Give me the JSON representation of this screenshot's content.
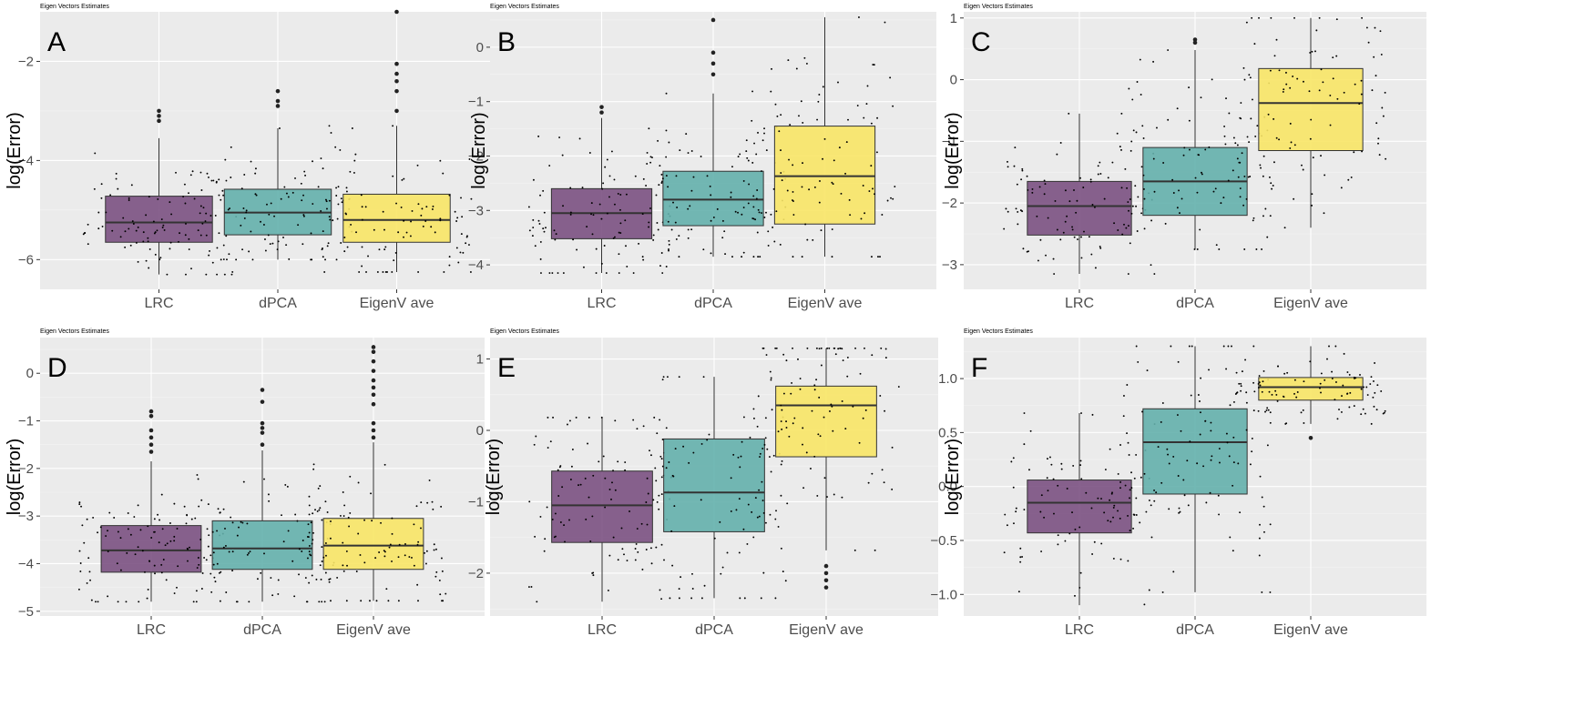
{
  "figure": {
    "panel_title": "Eigen Vectors Estimates"
  },
  "chart_data": [
    {
      "panel": "A",
      "type": "box",
      "title": "Eigen Vectors Estimates",
      "ylabel": "log(Error)",
      "xlabel": "",
      "ylim": [
        -6.6,
        -1.0
      ],
      "yticks": [
        -6,
        -4,
        -2
      ],
      "ytick_labels": [
        "−6",
        "−4",
        "−2"
      ],
      "categories": [
        "LRC",
        "dPCA",
        "EigenV ave"
      ],
      "colors": [
        "#7b5182",
        "#64b0ac",
        "#f8e666"
      ],
      "boxes": [
        {
          "q1": -5.65,
          "median": -5.25,
          "q3": -4.72,
          "whisker_low": -6.3,
          "whisker_high": -3.55,
          "outliers": [
            -3.0,
            -3.1,
            -3.2
          ]
        },
        {
          "q1": -5.5,
          "median": -5.05,
          "q3": -4.58,
          "whisker_low": -6.0,
          "whisker_high": -3.35,
          "outliers": [
            -2.6,
            -2.8,
            -2.9
          ]
        },
        {
          "q1": -5.65,
          "median": -5.2,
          "q3": -4.68,
          "whisker_low": -6.25,
          "whisker_high": -3.3,
          "outliers": [
            -1.0,
            -2.05,
            -2.25,
            -2.4,
            -2.6,
            -3.0
          ]
        }
      ]
    },
    {
      "panel": "B",
      "type": "box",
      "title": "Eigen Vectors Estimates",
      "ylabel": "log(Error)",
      "xlabel": "",
      "ylim": [
        -4.45,
        0.65
      ],
      "yticks": [
        -4,
        -3,
        -2,
        -1,
        0
      ],
      "ytick_labels": [
        "−4",
        "−3",
        "−2",
        "−1",
        "0"
      ],
      "categories": [
        "LRC",
        "dPCA",
        "EigenV ave"
      ],
      "colors": [
        "#7b5182",
        "#64b0ac",
        "#f8e666"
      ],
      "boxes": [
        {
          "q1": -3.52,
          "median": -3.05,
          "q3": -2.6,
          "whisker_low": -4.15,
          "whisker_high": -1.3,
          "outliers": [
            -1.1,
            -1.2
          ]
        },
        {
          "q1": -3.28,
          "median": -2.8,
          "q3": -2.28,
          "whisker_low": -3.85,
          "whisker_high": -0.85,
          "outliers": [
            -0.5,
            -0.3,
            -0.1,
            0.5
          ]
        },
        {
          "q1": -3.25,
          "median": -2.37,
          "q3": -1.45,
          "whisker_low": -3.85,
          "whisker_high": 0.55,
          "outliers": []
        }
      ]
    },
    {
      "panel": "C",
      "type": "box",
      "title": "Eigen Vectors Estimates",
      "ylabel": "log(Error)",
      "xlabel": "",
      "ylim": [
        -3.4,
        1.1
      ],
      "yticks": [
        -3,
        -2,
        -1,
        0,
        1
      ],
      "ytick_labels": [
        "−3",
        "−2",
        "−1",
        "0",
        "1"
      ],
      "categories": [
        "LRC",
        "dPCA",
        "EigenV ave"
      ],
      "colors": [
        "#7b5182",
        "#64b0ac",
        "#f8e666"
      ],
      "boxes": [
        {
          "q1": -2.52,
          "median": -2.05,
          "q3": -1.65,
          "whisker_low": -3.15,
          "whisker_high": -0.55,
          "outliers": []
        },
        {
          "q1": -2.2,
          "median": -1.65,
          "q3": -1.1,
          "whisker_low": -2.75,
          "whisker_high": 0.48,
          "outliers": [
            0.6,
            0.65
          ]
        },
        {
          "q1": -1.15,
          "median": -0.38,
          "q3": 0.18,
          "whisker_low": -2.4,
          "whisker_high": 1.0,
          "outliers": []
        }
      ]
    },
    {
      "panel": "D",
      "type": "box",
      "title": "Eigen Vectors Estimates",
      "ylabel": "log(Error)",
      "xlabel": "",
      "ylim": [
        -5.1,
        0.75
      ],
      "yticks": [
        -5,
        -4,
        -3,
        -2,
        -1,
        0
      ],
      "ytick_labels": [
        "−5",
        "−4",
        "−3",
        "−2",
        "−1",
        "0"
      ],
      "categories": [
        "LRC",
        "dPCA",
        "EigenV ave"
      ],
      "colors": [
        "#7b5182",
        "#64b0ac",
        "#f8e666"
      ],
      "boxes": [
        {
          "q1": -4.18,
          "median": -3.72,
          "q3": -3.2,
          "whisker_low": -4.8,
          "whisker_high": -1.85,
          "outliers": [
            -0.8,
            -0.9,
            -1.2,
            -1.35,
            -1.5,
            -1.65
          ]
        },
        {
          "q1": -4.12,
          "median": -3.68,
          "q3": -3.1,
          "whisker_low": -4.8,
          "whisker_high": -1.62,
          "outliers": [
            -0.35,
            -0.6,
            -1.05,
            -1.15,
            -1.25,
            -1.5
          ]
        },
        {
          "q1": -4.12,
          "median": -3.62,
          "q3": -3.05,
          "whisker_low": -4.78,
          "whisker_high": -1.45,
          "outliers": [
            0.55,
            0.45,
            0.25,
            0.05,
            -0.15,
            -0.3,
            -0.45,
            -0.65,
            -1.05,
            -1.2,
            -1.35
          ]
        }
      ]
    },
    {
      "panel": "E",
      "type": "box",
      "title": "Eigen Vectors Estimates",
      "ylabel": "log(Error)",
      "xlabel": "",
      "ylim": [
        -2.6,
        1.3
      ],
      "yticks": [
        -2,
        -1,
        0,
        1
      ],
      "ytick_labels": [
        "−2",
        "−1",
        "0",
        "1"
      ],
      "categories": [
        "LRC",
        "dPCA",
        "EigenV ave"
      ],
      "colors": [
        "#7b5182",
        "#64b0ac",
        "#f8e666"
      ],
      "boxes": [
        {
          "q1": -1.57,
          "median": -1.05,
          "q3": -0.57,
          "whisker_low": -2.4,
          "whisker_high": 0.18,
          "outliers": []
        },
        {
          "q1": -1.42,
          "median": -0.87,
          "q3": -0.12,
          "whisker_low": -2.35,
          "whisker_high": 0.75,
          "outliers": []
        },
        {
          "q1": -0.37,
          "median": 0.35,
          "q3": 0.62,
          "whisker_low": -1.68,
          "whisker_high": 1.15,
          "outliers": [
            -1.9,
            -2.0,
            -2.1,
            -2.2
          ]
        }
      ]
    },
    {
      "panel": "F",
      "type": "box",
      "title": "Eigen Vectors Estimates",
      "ylabel": "log(Error)",
      "xlabel": "",
      "ylim": [
        -1.2,
        1.38
      ],
      "yticks": [
        -1.0,
        -0.5,
        0.0,
        0.5,
        1.0
      ],
      "ytick_labels": [
        "−1.0",
        "−0.5",
        "0.0",
        "0.5",
        "1.0"
      ],
      "categories": [
        "LRC",
        "dPCA",
        "EigenV ave"
      ],
      "colors": [
        "#7b5182",
        "#64b0ac",
        "#f8e666"
      ],
      "boxes": [
        {
          "q1": -0.43,
          "median": -0.15,
          "q3": 0.06,
          "whisker_low": -1.1,
          "whisker_high": 0.68,
          "outliers": []
        },
        {
          "q1": -0.07,
          "median": 0.41,
          "q3": 0.72,
          "whisker_low": -0.98,
          "whisker_high": 1.3,
          "outliers": []
        },
        {
          "q1": 0.8,
          "median": 0.92,
          "q3": 1.01,
          "whisker_low": 0.58,
          "whisker_high": 1.3,
          "outliers": [
            0.45
          ]
        }
      ]
    }
  ]
}
